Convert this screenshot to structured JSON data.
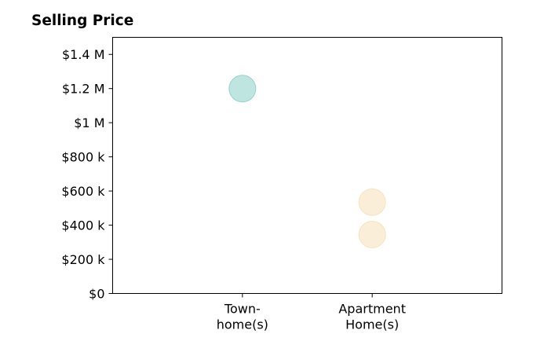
{
  "chart_data": {
    "type": "scatter",
    "title": "Selling Price",
    "xlabel": "",
    "ylabel": "",
    "categories": [
      [
        "Town-",
        "home(s)"
      ],
      [
        "Apartment",
        "Home(s)"
      ]
    ],
    "x_range": [
      -1,
      2
    ],
    "ylim": [
      0,
      1500000
    ],
    "yticks": [
      0,
      200000,
      400000,
      600000,
      800000,
      1000000,
      1200000,
      1400000
    ],
    "ytick_labels": [
      "$0",
      "$200 k",
      "$400 k",
      "$600 k",
      "$800 k",
      "$1 M",
      "$1.2 M",
      "$1.4 M"
    ],
    "series": [
      {
        "color": "#80cbc4",
        "points": [
          {
            "x": 0,
            "y": 1200000
          }
        ]
      },
      {
        "color": "#f5deb3",
        "points": [
          {
            "x": 1,
            "y": 535000
          },
          {
            "x": 1,
            "y": 345000
          }
        ]
      }
    ],
    "grid": false,
    "legend": "none"
  }
}
